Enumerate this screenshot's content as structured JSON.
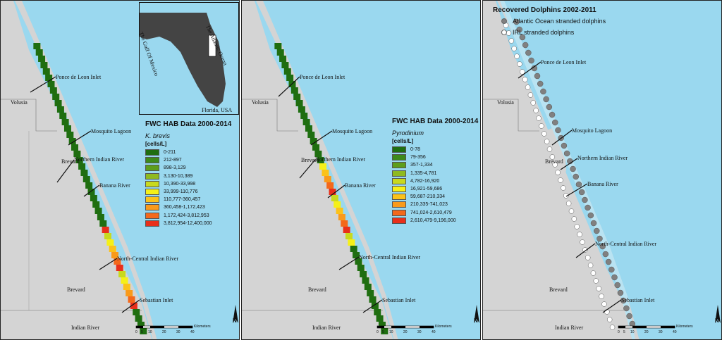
{
  "colors": {
    "water": "#9ad8ef",
    "land": "#d4d4d4",
    "dark_green": "#2e7d1e",
    "atlantic_dot": "#808080",
    "irl_dot": "#ffffff"
  },
  "places": {
    "ponce": "Ponce de Leon Inlet",
    "mosquito": "Mosquito Lagoon",
    "northern_irl": "Northern Indian River",
    "banana": "Banana River",
    "north_central": "North-Central Indian River",
    "sebastian": "Sebastian Inlet"
  },
  "counties": {
    "volusia": "Volusia",
    "brevard": "Brevard",
    "indian_river": "Indian River"
  },
  "inset": {
    "atlantic": "The Atlantic Ocean",
    "gulf": "The Gulf Of Mexico",
    "state": "Florida, USA"
  },
  "scale": {
    "ticks": [
      "0",
      "5",
      "10",
      "20",
      "30",
      "40"
    ],
    "unit": "Kilometers",
    "north": "N"
  },
  "panel1": {
    "title": "FWC HAB Data 2000-2014",
    "species": "K. brevis",
    "unit": "[cells/L]",
    "classes": [
      {
        "label": "0-211",
        "color": "#1f6e10"
      },
      {
        "label": "212-897",
        "color": "#3d8a1a"
      },
      {
        "label": "898-3,129",
        "color": "#5d9e1c"
      },
      {
        "label": "3,130-10,389",
        "color": "#8fba1f"
      },
      {
        "label": "10,390-33,998",
        "color": "#c8d91e"
      },
      {
        "label": "33,999-110,776",
        "color": "#f5f018"
      },
      {
        "label": "110,777-360,457",
        "color": "#fbc21a"
      },
      {
        "label": "360,458-1,172,423",
        "color": "#f99a1b"
      },
      {
        "label": "1,172,424-3,812,953",
        "color": "#f3681b"
      },
      {
        "label": "3,812,954-12,400,000",
        "color": "#e82f1a"
      }
    ]
  },
  "panel2": {
    "title": "FWC HAB Data 2000-2014",
    "species": "Pyrodinium",
    "unit": "[cells/L]",
    "classes": [
      {
        "label": "0-78",
        "color": "#1f6e10"
      },
      {
        "label": "79-356",
        "color": "#3d8a1a"
      },
      {
        "label": "357-1,334",
        "color": "#5d9e1c"
      },
      {
        "label": "1,335-4,781",
        "color": "#8fba1f"
      },
      {
        "label": "4,782-16,920",
        "color": "#c8d91e"
      },
      {
        "label": "16,921-59,686",
        "color": "#f5f018"
      },
      {
        "label": "59,687-210,334",
        "color": "#fbc21a"
      },
      {
        "label": "210,335-741,023",
        "color": "#f99a1b"
      },
      {
        "label": "741,024-2,610,479",
        "color": "#f3681b"
      },
      {
        "label": "2,610,479-9,196,000",
        "color": "#e82f1a"
      }
    ]
  },
  "panel3": {
    "title": "Recovered Dolphins 2002-2011",
    "atlantic_label": "Atlantic Ocean stranded dolphins",
    "irl_label": "IRL stranded dolphins"
  }
}
